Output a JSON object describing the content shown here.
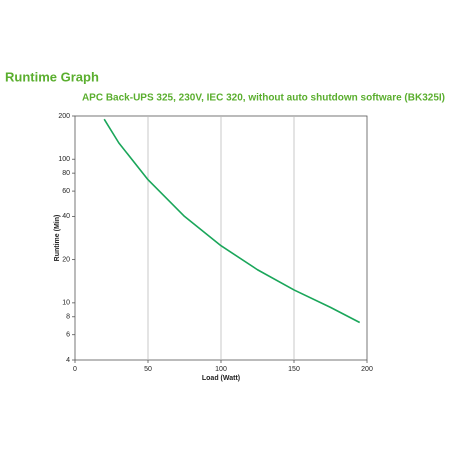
{
  "chart_data": {
    "type": "line",
    "title": "Runtime Graph",
    "subtitle": "APC Back-UPS 325, 230V, IEC 320, without auto shutdown software (BK325I)",
    "x_label": "Load (Watt)",
    "y_label": "Runtime (Min)",
    "x": [
      20,
      30,
      50,
      75,
      100,
      125,
      150,
      175,
      195
    ],
    "values": [
      190,
      130,
      72,
      40,
      25,
      17,
      12.3,
      9.3,
      7.3
    ],
    "color": "#1aa65a",
    "text_color": "#5aae2e",
    "xlim": [
      0,
      200
    ],
    "xticks": [
      0,
      50,
      100,
      150,
      200
    ],
    "ylim": [
      4,
      200
    ],
    "yticks": [
      4,
      6,
      8,
      10,
      20,
      40,
      60,
      80,
      100,
      200
    ],
    "y_log": true,
    "x_grid": true
  }
}
